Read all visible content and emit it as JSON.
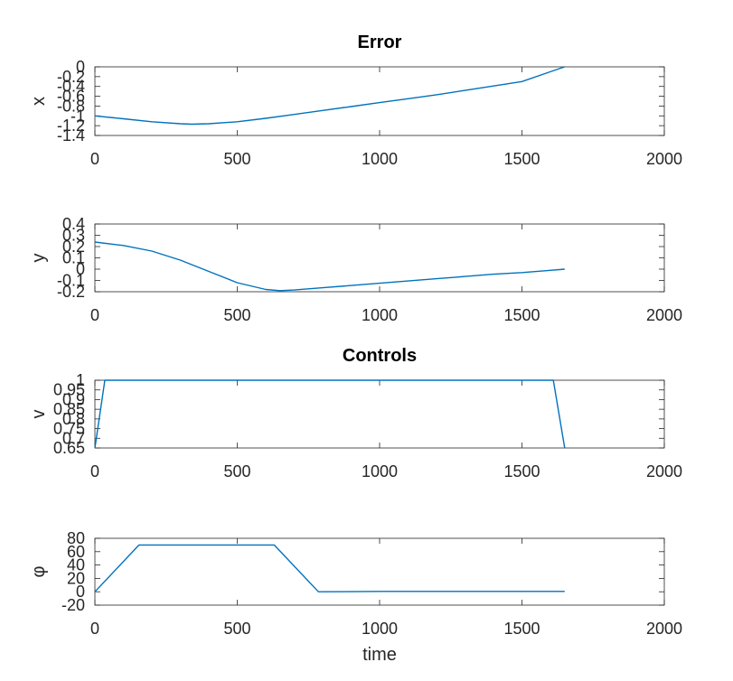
{
  "series_color": "#0072bd",
  "chart_data": [
    {
      "type": "line",
      "title": "Error",
      "xlabel": "",
      "ylabel": "x",
      "xlim": [
        0,
        2000
      ],
      "ylim": [
        -1.4,
        0
      ],
      "xticks": [
        0,
        500,
        1000,
        1500,
        2000
      ],
      "yticks": [
        -1.4,
        -1.2,
        -1,
        -0.8,
        -0.6,
        -0.4,
        -0.2,
        0
      ],
      "xtick_labels": [
        "0",
        "500",
        "1000",
        "1500",
        "2000"
      ],
      "ytick_labels": [
        "-1.4",
        "-1.2",
        "-1",
        "-0.8",
        "-0.6",
        "-0.4",
        "-0.2",
        "0"
      ],
      "grid": false,
      "x": [
        0,
        100,
        200,
        300,
        340,
        400,
        500,
        600,
        700,
        800,
        900,
        1000,
        1100,
        1200,
        1300,
        1400,
        1500,
        1600,
        1650
      ],
      "y": [
        -1,
        -1.06,
        -1.12,
        -1.16,
        -1.17,
        -1.16,
        -1.12,
        -1.05,
        -0.97,
        -0.89,
        -0.81,
        -0.73,
        -0.65,
        -0.57,
        -0.48,
        -0.39,
        -0.3,
        -0.1,
        0
      ]
    },
    {
      "type": "line",
      "title": "",
      "xlabel": "",
      "ylabel": "y",
      "xlim": [
        0,
        2000
      ],
      "ylim": [
        -0.2,
        0.4
      ],
      "xticks": [
        0,
        500,
        1000,
        1500,
        2000
      ],
      "yticks": [
        -0.2,
        -0.1,
        0,
        0.1,
        0.2,
        0.3,
        0.4
      ],
      "xtick_labels": [
        "0",
        "500",
        "1000",
        "1500",
        "2000"
      ],
      "ytick_labels": [
        "-0.2",
        "-0.1",
        "0",
        "0.1",
        "0.2",
        "0.3",
        "0.4"
      ],
      "grid": false,
      "x": [
        0,
        100,
        200,
        300,
        400,
        500,
        600,
        650,
        700,
        800,
        900,
        1000,
        1100,
        1200,
        1300,
        1400,
        1500,
        1600,
        1650
      ],
      "y": [
        0.24,
        0.21,
        0.16,
        0.08,
        -0.02,
        -0.12,
        -0.18,
        -0.19,
        -0.185,
        -0.165,
        -0.145,
        -0.125,
        -0.105,
        -0.085,
        -0.065,
        -0.045,
        -0.03,
        -0.01,
        0
      ]
    },
    {
      "type": "line",
      "title": "Controls",
      "xlabel": "",
      "ylabel": "v",
      "xlim": [
        0,
        2000
      ],
      "ylim": [
        0.65,
        1
      ],
      "xticks": [
        0,
        500,
        1000,
        1500,
        2000
      ],
      "yticks": [
        0.65,
        0.7,
        0.75,
        0.8,
        0.85,
        0.9,
        0.95,
        1
      ],
      "xtick_labels": [
        "0",
        "500",
        "1000",
        "1500",
        "2000"
      ],
      "ytick_labels": [
        "0.65",
        "0.7",
        "0.75",
        "0.8",
        "0.85",
        "0.9",
        "0.95",
        "1"
      ],
      "grid": false,
      "x": [
        0,
        35,
        1610,
        1650
      ],
      "y": [
        0.65,
        1,
        1,
        0.65
      ]
    },
    {
      "type": "line",
      "title": "",
      "xlabel": "time",
      "ylabel": "φ",
      "xlim": [
        0,
        2000
      ],
      "ylim": [
        -20,
        80
      ],
      "xticks": [
        0,
        500,
        1000,
        1500,
        2000
      ],
      "yticks": [
        -20,
        0,
        20,
        40,
        60,
        80
      ],
      "xtick_labels": [
        "0",
        "500",
        "1000",
        "1500",
        "2000"
      ],
      "ytick_labels": [
        "-20",
        "0",
        "20",
        "40",
        "60",
        "80"
      ],
      "grid": false,
      "x": [
        0,
        155,
        630,
        785,
        1000,
        1650
      ],
      "y": [
        0,
        70,
        70,
        0,
        0.5,
        0.5
      ]
    }
  ]
}
